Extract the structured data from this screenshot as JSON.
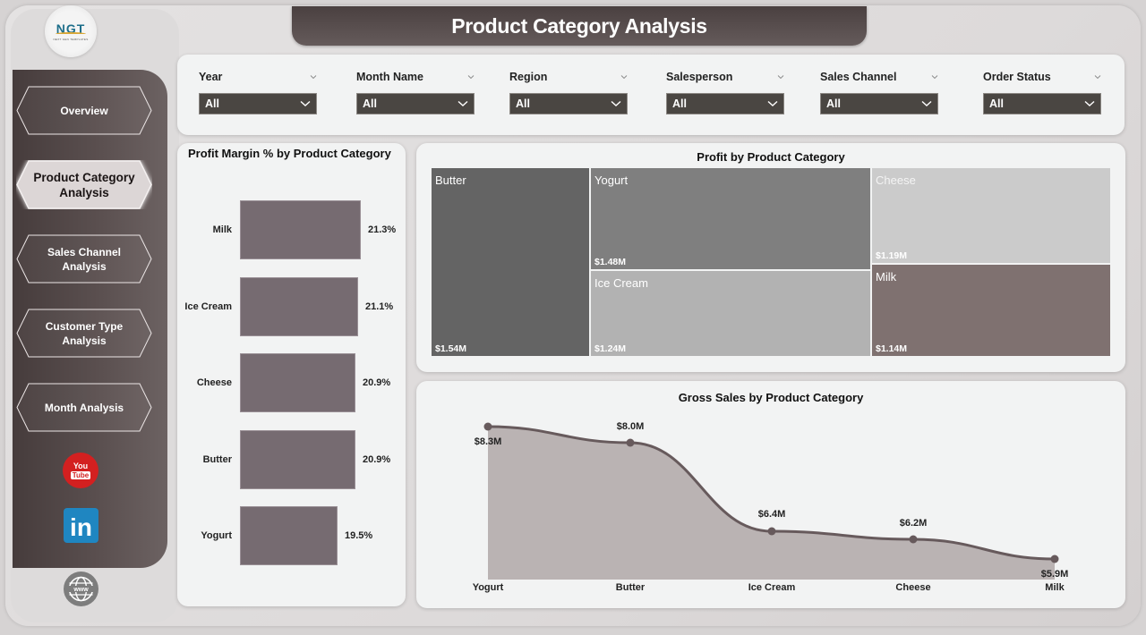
{
  "header": {
    "title": "Product Category Analysis"
  },
  "logo": {
    "text": "NGT",
    "subtitle": "NEXT GEN TEMPLATES"
  },
  "sidebar": {
    "items": [
      {
        "label": "Overview",
        "active": false
      },
      {
        "label": "Product Category Analysis",
        "active": true
      },
      {
        "label": "Sales Channel Analysis",
        "active": false
      },
      {
        "label": "Customer Type Analysis",
        "active": false
      },
      {
        "label": "Month Analysis",
        "active": false
      }
    ],
    "social": {
      "youtube_top": "You",
      "youtube_bottom": "Tube",
      "linkedin": "in",
      "website": "www"
    }
  },
  "filters": [
    {
      "label": "Year",
      "value": "All"
    },
    {
      "label": "Month Name",
      "value": "All"
    },
    {
      "label": "Region",
      "value": "All"
    },
    {
      "label": "Salesperson",
      "value": "All"
    },
    {
      "label": "Sales Channel",
      "value": "All"
    },
    {
      "label": "Order Status",
      "value": "All"
    }
  ],
  "colors": {
    "sidebar_dark": "#463c3c",
    "bar": "#766b71",
    "area_fill": "#bab3b3",
    "line": "#675a5c",
    "tm_butter": "#646464",
    "tm_yogurt": "#7f7f7f",
    "tm_icecream": "#b2b2b2",
    "tm_cheese": "#cbcbcb",
    "tm_milk": "#7f7170"
  },
  "chart_data": [
    {
      "type": "bar",
      "orientation": "horizontal",
      "title": "Profit Margin % by Product Category",
      "categories": [
        "Milk",
        "Ice Cream",
        "Cheese",
        "Butter",
        "Yogurt"
      ],
      "values": [
        21.3,
        21.1,
        20.9,
        20.9,
        19.5
      ],
      "labels": [
        "21.3%",
        "21.1%",
        "20.9%",
        "20.9%",
        "19.5%"
      ],
      "xlabel": "",
      "ylabel": "",
      "grid": false
    },
    {
      "type": "treemap",
      "title": "Profit by Product Category",
      "categories": [
        "Butter",
        "Yogurt",
        "Ice Cream",
        "Cheese",
        "Milk"
      ],
      "values": [
        1.54,
        1.48,
        1.24,
        1.19,
        1.14
      ],
      "labels": [
        "$1.54M",
        "$1.48M",
        "$1.24M",
        "$1.19M",
        "$1.14M"
      ],
      "unit": "$M"
    },
    {
      "type": "area",
      "title": "Gross Sales by Product Category",
      "categories": [
        "Yogurt",
        "Butter",
        "Ice Cream",
        "Cheese",
        "Milk"
      ],
      "values": [
        8.3,
        8.0,
        6.4,
        6.2,
        5.9
      ],
      "labels": [
        "$8.3M",
        "$8.0M",
        "$6.4M",
        "$6.2M",
        "$5.9M"
      ],
      "unit": "$M",
      "xlabel": "",
      "ylabel": "",
      "grid": false
    }
  ]
}
